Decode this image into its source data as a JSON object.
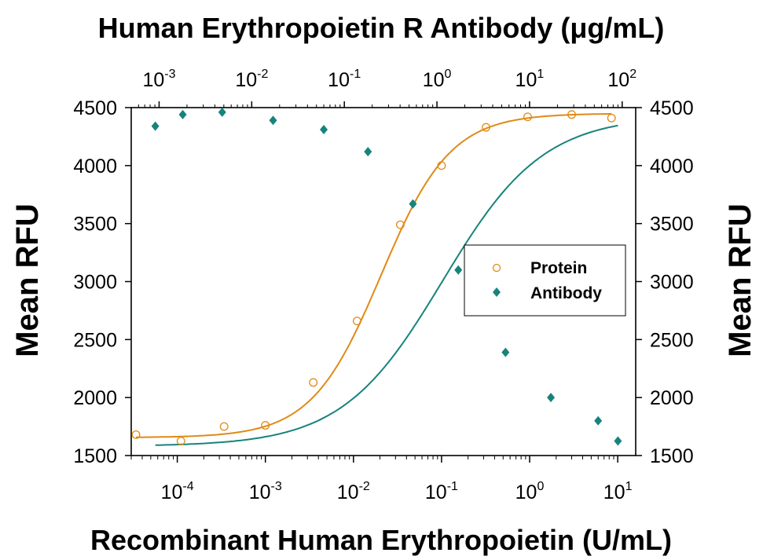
{
  "chart_data": {
    "type": "scatter",
    "title_top": "Human Erythropoietin R Antibody (μg/mL)",
    "xlabel": "Recombinant Human Erythropoietin (U/mL)",
    "ylabel_left": "Mean RFU",
    "ylabel_right": "Mean RFU",
    "x_scale": "log",
    "x_bottom_range": [
      3e-05,
      16
    ],
    "x_top_range": [
      0.0005,
      140
    ],
    "y_range": [
      1500,
      4500
    ],
    "y_ticks": [
      "1500",
      "2000",
      "2500",
      "3000",
      "3500",
      "4000",
      "4500"
    ],
    "x_bottom_ticks": [
      {
        "base": "10",
        "exp": "-4",
        "value": 0.0001
      },
      {
        "base": "10",
        "exp": "-3",
        "value": 0.001
      },
      {
        "base": "10",
        "exp": "-2",
        "value": 0.01
      },
      {
        "base": "10",
        "exp": "-1",
        "value": 0.1
      },
      {
        "base": "10",
        "exp": "0",
        "value": 1
      },
      {
        "base": "10",
        "exp": "1",
        "value": 10
      }
    ],
    "x_top_ticks": [
      {
        "base": "10",
        "exp": "-3",
        "value": 0.001
      },
      {
        "base": "10",
        "exp": "-2",
        "value": 0.01
      },
      {
        "base": "10",
        "exp": "-1",
        "value": 0.1
      },
      {
        "base": "10",
        "exp": "0",
        "value": 1
      },
      {
        "base": "10",
        "exp": "1",
        "value": 10
      },
      {
        "base": "10",
        "exp": "2",
        "value": 100
      }
    ],
    "series": [
      {
        "name": "Protein",
        "axis": "bottom",
        "color": "#e08a16",
        "marker": "open-circle",
        "x": [
          3.4e-05,
          0.00011,
          0.00034,
          0.001,
          0.0035,
          0.011,
          0.034,
          0.1,
          0.32,
          0.95,
          3,
          8.5
        ],
        "y": [
          1680,
          1625,
          1750,
          1760,
          2130,
          2660,
          3490,
          4000,
          4330,
          4420,
          4440,
          4410
        ],
        "fit": {
          "bottom": 1655,
          "top": 4450,
          "ec50": 0.0205,
          "hill": 1.1
        }
      },
      {
        "name": "Antibody",
        "axis": "top",
        "color": "#17837c",
        "marker": "filled-diamond",
        "x": [
          0.00091,
          0.0018,
          0.0048,
          0.017,
          0.06,
          0.18,
          0.55,
          1.7,
          5.5,
          17,
          55,
          90
        ],
        "y": [
          4340,
          4440,
          4460,
          4390,
          4310,
          4120,
          3670,
          3100,
          2390,
          2000,
          1800,
          1625
        ],
        "fit": {
          "bottom": 1580,
          "top": 4430,
          "ec50": 1.15,
          "hill": 0.8
        }
      }
    ],
    "legend": {
      "position": "right",
      "entries": [
        "Protein",
        "Antibody"
      ]
    }
  }
}
